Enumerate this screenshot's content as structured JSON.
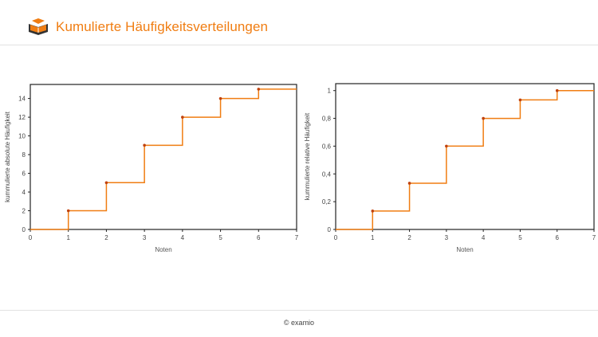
{
  "header": {
    "title": "Kumulierte Häufigkeitsverteilungen",
    "logo_icon": "book-logo-icon",
    "accent_color": "#f07d12"
  },
  "footer": {
    "copyright": "© examio"
  },
  "chart_data": [
    {
      "type": "line",
      "step": true,
      "xlabel": "Noten",
      "ylabel": "kummulierte absolute Häufigkeit",
      "xlim": [
        0,
        7
      ],
      "ylim": [
        0,
        15.5
      ],
      "x_ticks": [
        "0",
        "1",
        "2",
        "3",
        "4",
        "5",
        "6",
        "7"
      ],
      "y_ticks": [
        "0",
        "2",
        "4",
        "6",
        "8",
        "10",
        "12",
        "14"
      ],
      "grid": false,
      "series": [
        {
          "x": [
            1,
            2,
            3,
            4,
            5,
            6
          ],
          "y": [
            2,
            5,
            9,
            12,
            14,
            15
          ]
        }
      ],
      "line_color": "#f07d12",
      "marker_color": "#c0420e"
    },
    {
      "type": "line",
      "step": true,
      "xlabel": "Noten",
      "ylabel": "kummulierte relative Häufigkeit",
      "xlim": [
        0,
        7
      ],
      "ylim": [
        0,
        1.05
      ],
      "x_ticks": [
        "0",
        "1",
        "2",
        "3",
        "4",
        "5",
        "6",
        "7"
      ],
      "y_ticks": [
        "0",
        "0,2",
        "0,4",
        "0,6",
        "0,8",
        "1"
      ],
      "grid": false,
      "series": [
        {
          "x": [
            1,
            2,
            3,
            4,
            5,
            6
          ],
          "y": [
            0.133,
            0.333,
            0.6,
            0.8,
            0.933,
            1
          ]
        }
      ],
      "line_color": "#f07d12",
      "marker_color": "#c0420e"
    }
  ]
}
